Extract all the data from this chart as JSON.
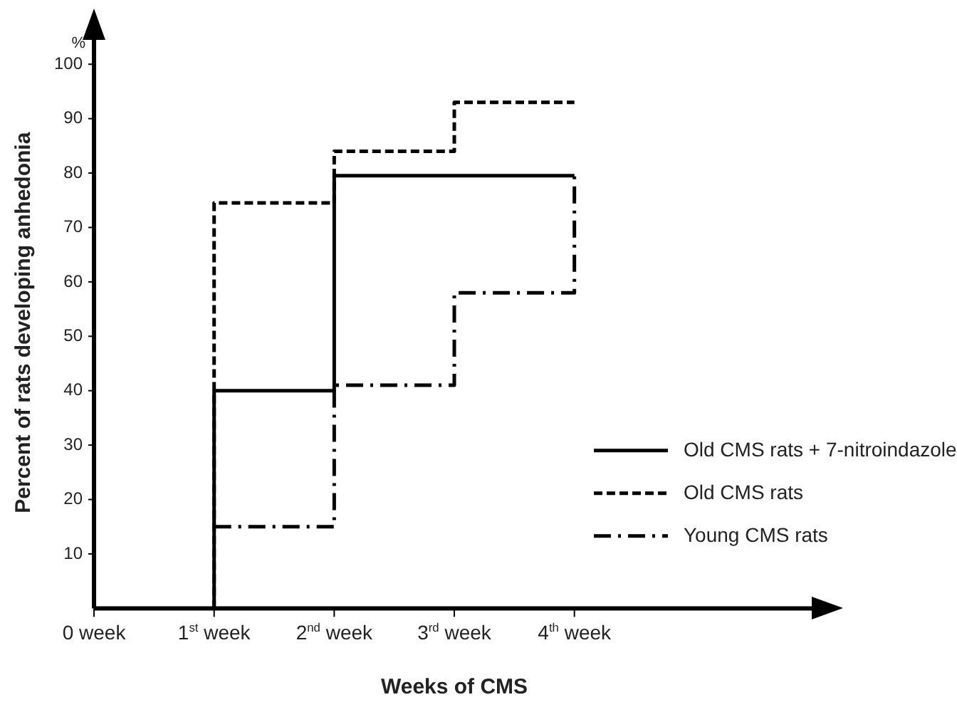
{
  "chart_data": {
    "type": "step",
    "xlabel": "Weeks of CMS",
    "ylabel": "Percent of rats developing anhedonia",
    "annotations": [
      "%"
    ],
    "xlim": [
      0,
      6
    ],
    "xticks": [
      {
        "value": 0,
        "label": "0 week"
      },
      {
        "value": 1,
        "label": "1$^{st}$ week"
      },
      {
        "value": 2,
        "label": "2$^{nd}$ week"
      },
      {
        "value": 3,
        "label": "3$^{rd}$ week"
      },
      {
        "value": 4,
        "label": "4$^{th}$ week"
      }
    ],
    "ylim": [
      0,
      105
    ],
    "yticks": [
      10,
      20,
      30,
      40,
      50,
      60,
      70,
      80,
      90,
      100
    ],
    "grid": false,
    "legend": "right",
    "series": [
      {
        "name": "Old CMS rats + 7-nitroindazole",
        "color": "#000000",
        "line_style": "solid",
        "x": [
          1,
          1,
          2,
          4
        ],
        "values": [
          0,
          40,
          79.5,
          79.5
        ]
      },
      {
        "name": "Old CMS rats",
        "color": "#000000",
        "line_style": "dashed",
        "x": [
          1,
          1,
          2,
          3,
          4
        ],
        "values": [
          0,
          74.5,
          84,
          93,
          93
        ]
      },
      {
        "name": "Young CMS rats",
        "color": "#000000",
        "line_style": "dashdot",
        "x": [
          1,
          2,
          3,
          4
        ],
        "values": [
          15,
          41,
          58,
          79.5
        ]
      }
    ]
  }
}
